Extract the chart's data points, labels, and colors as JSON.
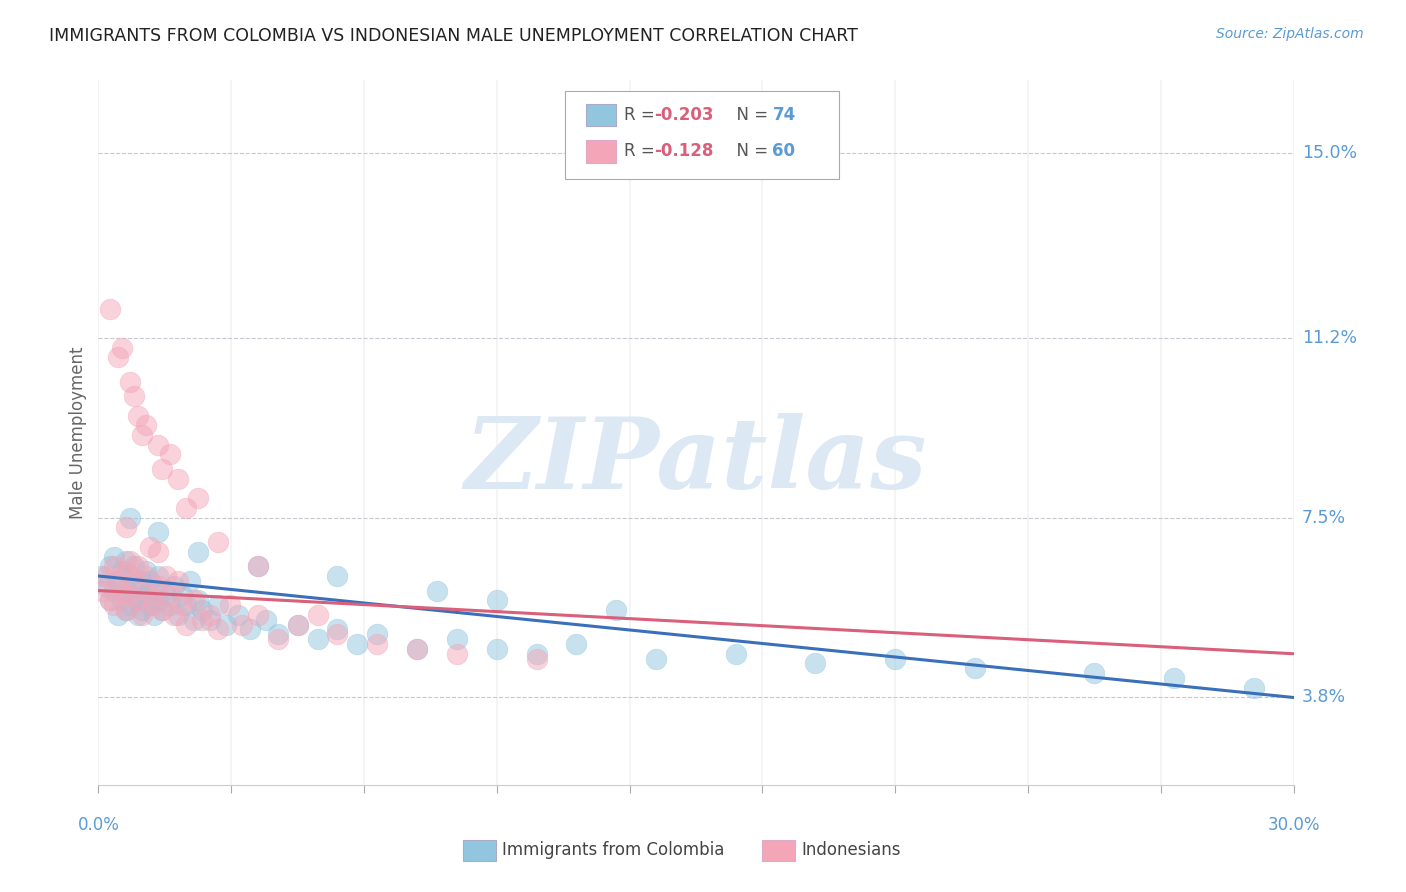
{
  "title": "IMMIGRANTS FROM COLOMBIA VS INDONESIAN MALE UNEMPLOYMENT CORRELATION CHART",
  "source_text": "Source: ZipAtlas.com",
  "ylabel": "Male Unemployment",
  "y_tick_labels": [
    "3.8%",
    "7.5%",
    "11.2%",
    "15.0%"
  ],
  "y_tick_values": [
    0.038,
    0.075,
    0.112,
    0.15
  ],
  "x_min": 0.0,
  "x_max": 0.3,
  "y_min": 0.02,
  "y_max": 0.165,
  "blue_color": "#92c5de",
  "pink_color": "#f4a6b8",
  "trend_blue": "#3a6fba",
  "trend_pink": "#d95f7a",
  "watermark": "ZIPatlas",
  "watermark_color": "#dde8f5",
  "background_color": "#ffffff",
  "axis_label_color": "#5b9bd5",
  "legend_r_color": "#d95f7a",
  "legend_n_color": "#5b9bd5",
  "blue_scatter_x": [
    0.001,
    0.002,
    0.003,
    0.003,
    0.004,
    0.004,
    0.005,
    0.005,
    0.006,
    0.006,
    0.007,
    0.007,
    0.007,
    0.008,
    0.008,
    0.009,
    0.009,
    0.01,
    0.01,
    0.01,
    0.011,
    0.011,
    0.012,
    0.012,
    0.013,
    0.013,
    0.014,
    0.014,
    0.015,
    0.015,
    0.016,
    0.017,
    0.018,
    0.019,
    0.02,
    0.021,
    0.022,
    0.023,
    0.024,
    0.025,
    0.026,
    0.028,
    0.03,
    0.032,
    0.035,
    0.038,
    0.042,
    0.045,
    0.05,
    0.055,
    0.06,
    0.065,
    0.07,
    0.08,
    0.09,
    0.1,
    0.11,
    0.12,
    0.14,
    0.16,
    0.18,
    0.2,
    0.22,
    0.25,
    0.27,
    0.29,
    0.008,
    0.015,
    0.025,
    0.04,
    0.06,
    0.085,
    0.1,
    0.13
  ],
  "blue_scatter_y": [
    0.063,
    0.061,
    0.058,
    0.065,
    0.06,
    0.067,
    0.055,
    0.062,
    0.058,
    0.064,
    0.056,
    0.06,
    0.066,
    0.057,
    0.063,
    0.059,
    0.065,
    0.055,
    0.061,
    0.058,
    0.062,
    0.056,
    0.059,
    0.064,
    0.057,
    0.062,
    0.055,
    0.06,
    0.058,
    0.063,
    0.056,
    0.059,
    0.057,
    0.061,
    0.055,
    0.059,
    0.057,
    0.062,
    0.054,
    0.058,
    0.056,
    0.054,
    0.057,
    0.053,
    0.055,
    0.052,
    0.054,
    0.051,
    0.053,
    0.05,
    0.052,
    0.049,
    0.051,
    0.048,
    0.05,
    0.048,
    0.047,
    0.049,
    0.046,
    0.047,
    0.045,
    0.046,
    0.044,
    0.043,
    0.042,
    0.04,
    0.075,
    0.072,
    0.068,
    0.065,
    0.063,
    0.06,
    0.058,
    0.056
  ],
  "pink_scatter_x": [
    0.001,
    0.002,
    0.003,
    0.004,
    0.004,
    0.005,
    0.006,
    0.007,
    0.007,
    0.008,
    0.008,
    0.009,
    0.01,
    0.01,
    0.011,
    0.012,
    0.013,
    0.014,
    0.015,
    0.015,
    0.016,
    0.017,
    0.018,
    0.019,
    0.02,
    0.021,
    0.022,
    0.024,
    0.026,
    0.028,
    0.03,
    0.033,
    0.036,
    0.04,
    0.045,
    0.05,
    0.06,
    0.07,
    0.09,
    0.11,
    0.005,
    0.01,
    0.015,
    0.02,
    0.008,
    0.012,
    0.018,
    0.025,
    0.007,
    0.013,
    0.003,
    0.006,
    0.009,
    0.011,
    0.016,
    0.022,
    0.03,
    0.04,
    0.055,
    0.08
  ],
  "pink_scatter_y": [
    0.06,
    0.063,
    0.058,
    0.065,
    0.057,
    0.062,
    0.06,
    0.056,
    0.064,
    0.059,
    0.066,
    0.062,
    0.058,
    0.065,
    0.055,
    0.063,
    0.059,
    0.057,
    0.061,
    0.068,
    0.056,
    0.063,
    0.059,
    0.055,
    0.062,
    0.057,
    0.053,
    0.058,
    0.054,
    0.055,
    0.052,
    0.057,
    0.053,
    0.055,
    0.05,
    0.053,
    0.051,
    0.049,
    0.047,
    0.046,
    0.108,
    0.096,
    0.09,
    0.083,
    0.103,
    0.094,
    0.088,
    0.079,
    0.073,
    0.069,
    0.118,
    0.11,
    0.1,
    0.092,
    0.085,
    0.077,
    0.07,
    0.065,
    0.055,
    0.048
  ]
}
